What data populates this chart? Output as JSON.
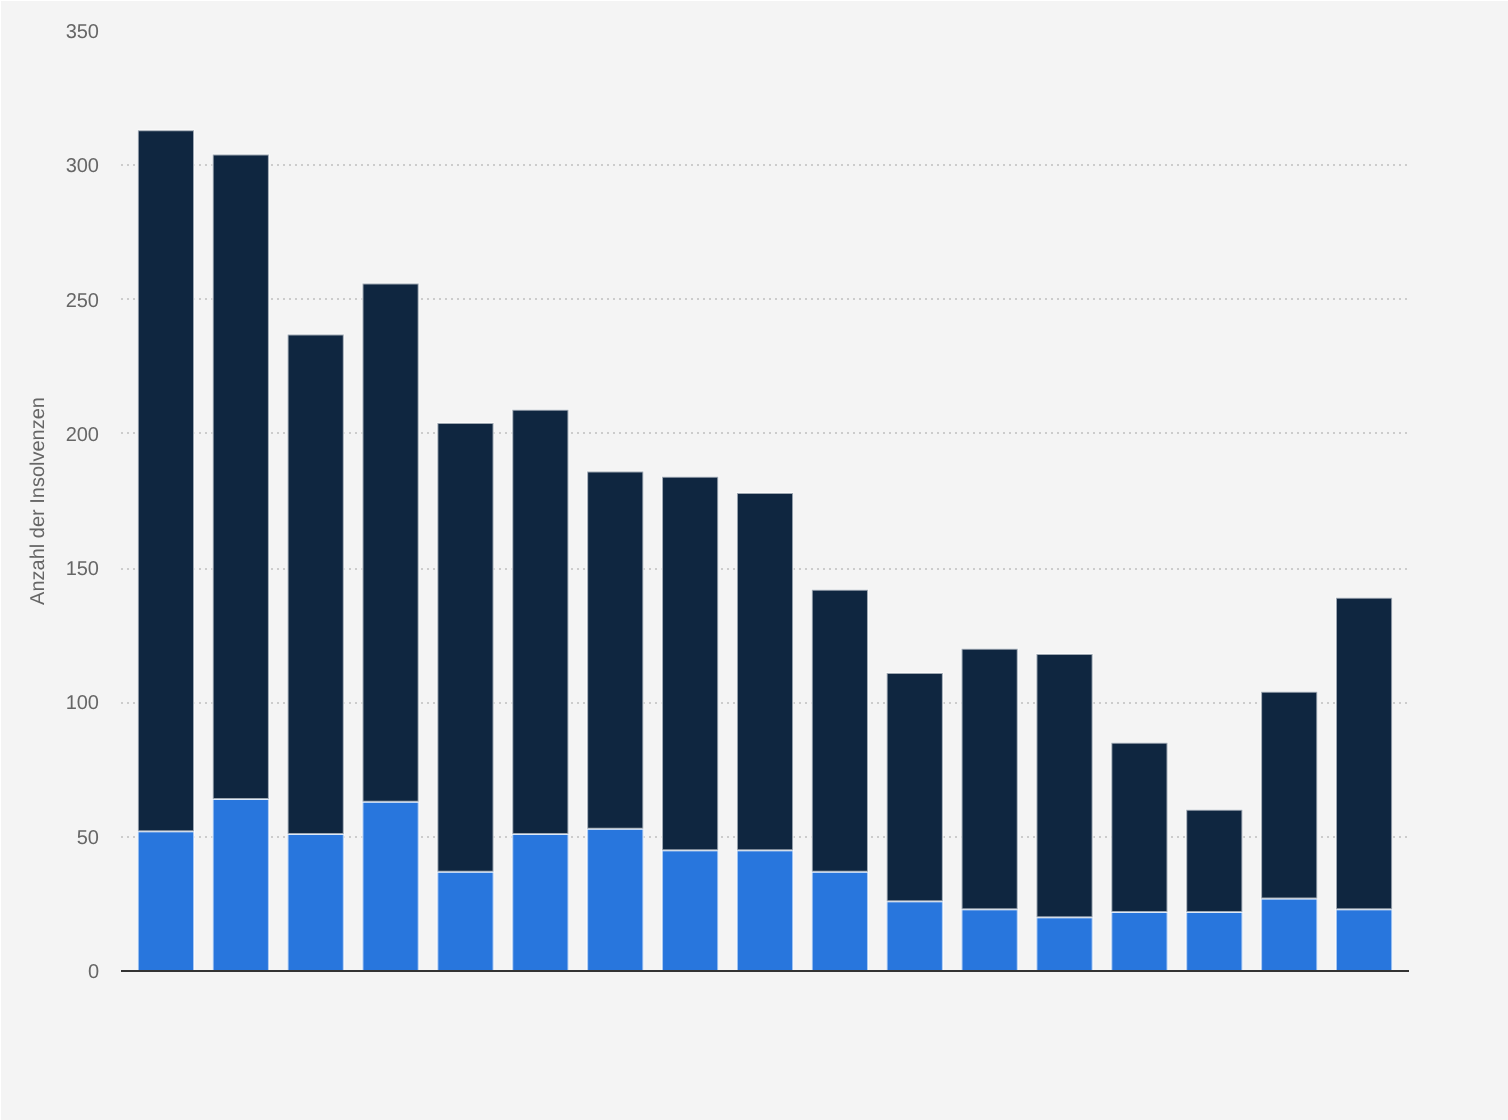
{
  "chart_data": {
    "type": "bar",
    "stacked": true,
    "ylabel": "Anzahl der Insolvenzen",
    "categories": [
      null,
      null,
      null,
      null,
      null,
      null,
      null,
      null,
      null,
      null,
      null,
      null,
      null,
      null,
      null,
      null,
      null
    ],
    "series": [
      {
        "color": "#2876dd",
        "values": [
          52,
          64,
          51,
          63,
          37,
          51,
          53,
          45,
          45,
          37,
          26,
          23,
          20,
          22,
          22,
          27,
          23
        ]
      },
      {
        "color": "#0f2640",
        "values": [
          261,
          240,
          186,
          193,
          167,
          158,
          133,
          139,
          133,
          105,
          85,
          97,
          98,
          63,
          38,
          77,
          116
        ]
      }
    ],
    "ylim": [
      0,
      350
    ],
    "yticks": [
      0,
      50,
      100,
      150,
      200,
      250,
      300,
      350
    ],
    "grid": "y"
  }
}
